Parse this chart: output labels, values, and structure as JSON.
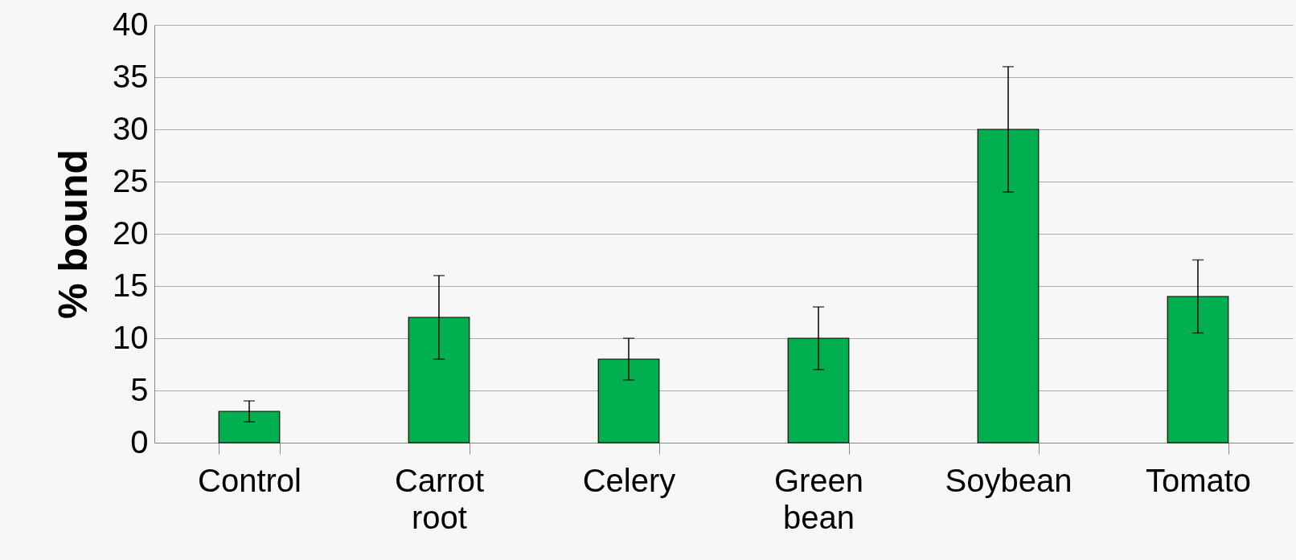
{
  "chart_data": {
    "type": "bar",
    "ylabel": "% bound",
    "categories": [
      "Control",
      "Carrot root",
      "Celery",
      "Green bean",
      "Soybean",
      "Tomato"
    ],
    "values": [
      3,
      12,
      8,
      10,
      30,
      14
    ],
    "errors": [
      1,
      4,
      2,
      3,
      6,
      3.5
    ],
    "color": "#00b050",
    "ylim": [
      0,
      40
    ],
    "yticks": [
      0,
      5,
      10,
      15,
      20,
      25,
      30,
      35,
      40
    ],
    "grid": "y"
  }
}
